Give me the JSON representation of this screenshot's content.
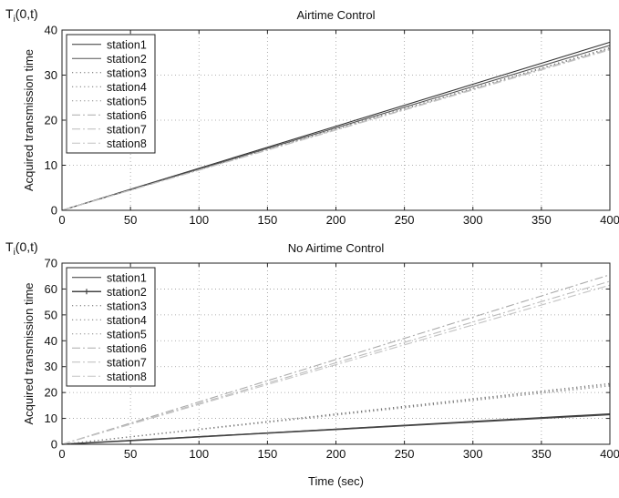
{
  "chart_data": [
    {
      "type": "line",
      "title": "Airtime Control",
      "corner_label": {
        "main": "T",
        "sub": "i",
        "rest": "(0,t)"
      },
      "ylabel": "Acquired transmission time",
      "xlabel": "",
      "xlim": [
        0,
        400
      ],
      "ylim": [
        0,
        40
      ],
      "xticks": [
        0,
        50,
        100,
        150,
        200,
        250,
        300,
        350,
        400
      ],
      "yticks": [
        0,
        10,
        20,
        30,
        40
      ],
      "grid": true,
      "legend_position": "top-left",
      "series": [
        {
          "name": "station1",
          "style": "solid",
          "color": "#333333",
          "x": [
            0,
            400
          ],
          "y": [
            0,
            37.3
          ]
        },
        {
          "name": "station2",
          "style": "solid",
          "color": "#555555",
          "x": [
            0,
            400
          ],
          "y": [
            0,
            36.6
          ]
        },
        {
          "name": "station3",
          "style": "dotted",
          "color": "#666666",
          "x": [
            0,
            400
          ],
          "y": [
            0,
            36.1
          ]
        },
        {
          "name": "station4",
          "style": "dotted",
          "color": "#777777",
          "x": [
            0,
            400
          ],
          "y": [
            0,
            36.0
          ]
        },
        {
          "name": "station5",
          "style": "dotted",
          "color": "#888888",
          "x": [
            0,
            400
          ],
          "y": [
            0,
            35.9
          ]
        },
        {
          "name": "station6",
          "style": "dashdot",
          "color": "#aaaaaa",
          "x": [
            0,
            400
          ],
          "y": [
            0,
            35.8
          ]
        },
        {
          "name": "station7",
          "style": "dashdot",
          "color": "#bbbbbb",
          "x": [
            0,
            400
          ],
          "y": [
            0,
            35.7
          ]
        },
        {
          "name": "station8",
          "style": "dashdot",
          "color": "#c4c4c4",
          "x": [
            0,
            400
          ],
          "y": [
            0,
            35.6
          ]
        }
      ]
    },
    {
      "type": "line",
      "title": "No Airtime Control",
      "corner_label": {
        "main": "T",
        "sub": "i",
        "rest": "(0,t)"
      },
      "ylabel": "Acquired transmission time",
      "xlabel": "Time (sec)",
      "xlim": [
        0,
        400
      ],
      "ylim": [
        0,
        70
      ],
      "xticks": [
        0,
        50,
        100,
        150,
        200,
        250,
        300,
        350,
        400
      ],
      "yticks": [
        0,
        10,
        20,
        30,
        40,
        50,
        60,
        70
      ],
      "grid": true,
      "legend_position": "top-left",
      "series": [
        {
          "name": "station1",
          "style": "solid",
          "color": "#333333",
          "x": [
            0,
            400
          ],
          "y": [
            0,
            11.8
          ]
        },
        {
          "name": "station2",
          "style": "solid-marker",
          "color": "#444444",
          "x": [
            0,
            400
          ],
          "y": [
            0,
            11.5
          ]
        },
        {
          "name": "station3",
          "style": "dotted",
          "color": "#666666",
          "x": [
            0,
            400
          ],
          "y": [
            0,
            23.5
          ]
        },
        {
          "name": "station4",
          "style": "dotted",
          "color": "#777777",
          "x": [
            0,
            400
          ],
          "y": [
            0,
            23.0
          ]
        },
        {
          "name": "station5",
          "style": "dotted",
          "color": "#888888",
          "x": [
            0,
            400
          ],
          "y": [
            0,
            22.5
          ]
        },
        {
          "name": "station6",
          "style": "dashdot",
          "color": "#aaaaaa",
          "x": [
            0,
            400
          ],
          "y": [
            0,
            65.5
          ]
        },
        {
          "name": "station7",
          "style": "dashdot",
          "color": "#bbbbbb",
          "x": [
            0,
            400
          ],
          "y": [
            0,
            63.0
          ]
        },
        {
          "name": "station8",
          "style": "dashdot",
          "color": "#c4c4c4",
          "x": [
            0,
            400
          ],
          "y": [
            0,
            61.5
          ]
        }
      ]
    }
  ]
}
